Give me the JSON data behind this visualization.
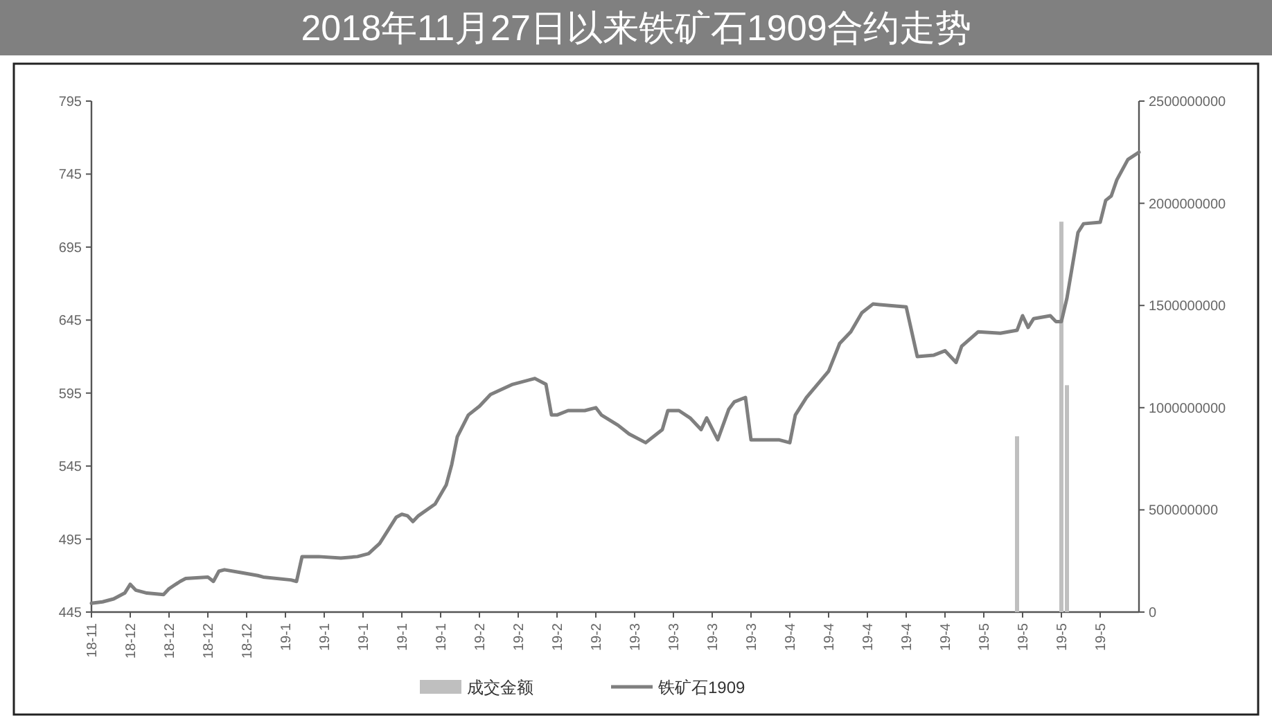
{
  "chart_data": {
    "type": "line",
    "title": "2018年11月27日以来铁矿石1909合约走势",
    "xlim": [
      "2018-11-27",
      "2019-06-04"
    ],
    "xticks": [
      {
        "value": "2018-11-27",
        "label": "18-11"
      },
      {
        "value": "2018-12-04",
        "label": "18-12"
      },
      {
        "value": "2018-12-11",
        "label": "18-12"
      },
      {
        "value": "2018-12-18",
        "label": "18-12"
      },
      {
        "value": "2018-12-25",
        "label": "18-12"
      },
      {
        "value": "2019-01-01",
        "label": "19-1"
      },
      {
        "value": "2019-01-08",
        "label": "19-1"
      },
      {
        "value": "2019-01-15",
        "label": "19-1"
      },
      {
        "value": "2019-01-22",
        "label": "19-1"
      },
      {
        "value": "2019-01-29",
        "label": "19-1"
      },
      {
        "value": "2019-02-05",
        "label": "19-2"
      },
      {
        "value": "2019-02-12",
        "label": "19-2"
      },
      {
        "value": "2019-02-19",
        "label": "19-2"
      },
      {
        "value": "2019-02-26",
        "label": "19-2"
      },
      {
        "value": "2019-03-05",
        "label": "19-3"
      },
      {
        "value": "2019-03-12",
        "label": "19-3"
      },
      {
        "value": "2019-03-19",
        "label": "19-3"
      },
      {
        "value": "2019-03-26",
        "label": "19-3"
      },
      {
        "value": "2019-04-02",
        "label": "19-4"
      },
      {
        "value": "2019-04-09",
        "label": "19-4"
      },
      {
        "value": "2019-04-16",
        "label": "19-4"
      },
      {
        "value": "2019-04-23",
        "label": "19-4"
      },
      {
        "value": "2019-04-30",
        "label": "19-4"
      },
      {
        "value": "2019-05-07",
        "label": "19-5"
      },
      {
        "value": "2019-05-14",
        "label": "19-5"
      },
      {
        "value": "2019-05-21",
        "label": "19-5"
      },
      {
        "value": "2019-05-28",
        "label": "19-5"
      }
    ],
    "ylim": [
      445,
      795
    ],
    "yticks": [
      445,
      495,
      545,
      595,
      645,
      695,
      745,
      795
    ],
    "y2lim": [
      0,
      2500000000
    ],
    "y2ticks": [
      0,
      500000000,
      1000000000,
      1500000000,
      2000000000,
      2500000000
    ],
    "legend": "bottom",
    "series": [
      {
        "name": "成交金额",
        "type": "bar",
        "axis": "y2",
        "color": "#bfbfbf",
        "x": [
          "2019-05-13",
          "2019-05-21",
          "2019-05-22"
        ],
        "values": [
          860000000,
          1910000000,
          1110000000
        ]
      },
      {
        "name": "铁矿石1909",
        "color": "#7f7f7f",
        "x": [
          "2018-11-27",
          "2018-11-29",
          "2018-12-01",
          "2018-12-03",
          "2018-12-04",
          "2018-12-05",
          "2018-12-07",
          "2018-12-10",
          "2018-12-11",
          "2018-12-13",
          "2018-12-14",
          "2018-12-18",
          "2018-12-19",
          "2018-12-20",
          "2018-12-21",
          "2018-12-24",
          "2018-12-27",
          "2018-12-28",
          "2019-01-02",
          "2019-01-03",
          "2019-01-04",
          "2019-01-07",
          "2019-01-11",
          "2019-01-14",
          "2019-01-16",
          "2019-01-18",
          "2019-01-21",
          "2019-01-22",
          "2019-01-23",
          "2019-01-24",
          "2019-01-25",
          "2019-01-28",
          "2019-01-30",
          "2019-01-31",
          "2019-02-01",
          "2019-02-03",
          "2019-02-05",
          "2019-02-07",
          "2019-02-11",
          "2019-02-15",
          "2019-02-17",
          "2019-02-18",
          "2019-02-19",
          "2019-02-21",
          "2019-02-24",
          "2019-02-26",
          "2019-02-27",
          "2019-03-02",
          "2019-03-04",
          "2019-03-07",
          "2019-03-09",
          "2019-03-10",
          "2019-03-11",
          "2019-03-13",
          "2019-03-15",
          "2019-03-17",
          "2019-03-18",
          "2019-03-20",
          "2019-03-22",
          "2019-03-23",
          "2019-03-25",
          "2019-03-26",
          "2019-03-27",
          "2019-03-31",
          "2019-04-02",
          "2019-04-03",
          "2019-04-05",
          "2019-04-07",
          "2019-04-09",
          "2019-04-11",
          "2019-04-13",
          "2019-04-15",
          "2019-04-17",
          "2019-04-20",
          "2019-04-23",
          "2019-04-24",
          "2019-04-25",
          "2019-04-28",
          "2019-04-30",
          "2019-05-01",
          "2019-05-02",
          "2019-05-03",
          "2019-05-06",
          "2019-05-10",
          "2019-05-13",
          "2019-05-14",
          "2019-05-15",
          "2019-05-16",
          "2019-05-19",
          "2019-05-20",
          "2019-05-21",
          "2019-05-22",
          "2019-05-24",
          "2019-05-25",
          "2019-05-28",
          "2019-05-29",
          "2019-05-30",
          "2019-05-31",
          "2019-06-02",
          "2019-06-04"
        ],
        "values": [
          451,
          452,
          454,
          458,
          464,
          460,
          458,
          457,
          461,
          466,
          468,
          469,
          466,
          473,
          474,
          472,
          470,
          469,
          467,
          466,
          483,
          483,
          482,
          483,
          485,
          492,
          510,
          512,
          511,
          507,
          511,
          519,
          532,
          546,
          565,
          580,
          586,
          594,
          601,
          605,
          601,
          580,
          580,
          583,
          583,
          585,
          580,
          573,
          567,
          561,
          567,
          570,
          583,
          583,
          578,
          570,
          578,
          563,
          584,
          589,
          592,
          563,
          563,
          563,
          561,
          580,
          592,
          601,
          610,
          629,
          637,
          650,
          656,
          655,
          654,
          637,
          620,
          621,
          624,
          620,
          616,
          627,
          637,
          636,
          638,
          648,
          640,
          646,
          648,
          644,
          644,
          660,
          705,
          711,
          712,
          727,
          730,
          741,
          755,
          760
        ]
      }
    ]
  }
}
